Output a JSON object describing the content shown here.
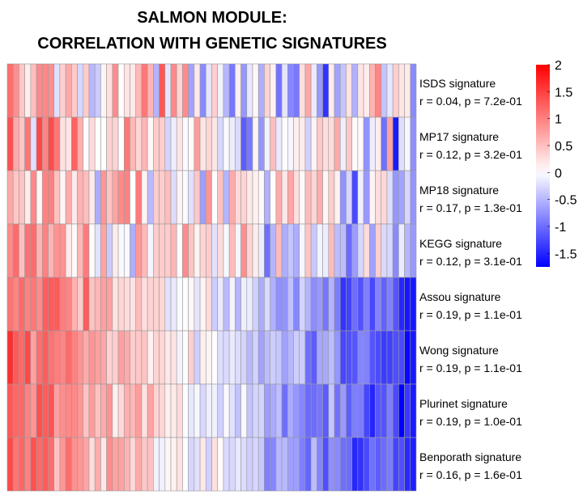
{
  "chart_data": {
    "type": "heatmap",
    "title": [
      "SALMON MODULE:",
      "CORRELATION WITH GENETIC SIGNATURES"
    ],
    "n_columns": 70,
    "rows": [
      {
        "name": "ISDS signature",
        "stat": "r = 0.04, p = 7.2e-01"
      },
      {
        "name": "MP17 signature",
        "stat": "r = 0.12, p = 3.2e-01"
      },
      {
        "name": "MP18 signature",
        "stat": "r = 0.17, p = 1.3e-01"
      },
      {
        "name": "KEGG signature",
        "stat": "r = 0.12, p = 3.1e-01"
      },
      {
        "name": "Assou signature",
        "stat": "r = 0.19, p = 1.1e-01"
      },
      {
        "name": "Wong signature",
        "stat": "r = 0.19, p = 1.1e-01"
      },
      {
        "name": "Plurinet signature",
        "stat": "r = 0.19, p = 1.0e-01"
      },
      {
        "name": "Benporath signature",
        "stat": "r = 0.16, p = 1.6e-01"
      }
    ],
    "color_scale": {
      "min": -1.75,
      "max": 2.0,
      "low_color": "#0000ff",
      "mid_color": "#ffffff",
      "high_color": "#ff0000",
      "ticks": [
        2,
        1.5,
        1,
        0.5,
        0,
        -0.5,
        -1,
        -1.5
      ],
      "tick_labels": [
        "2",
        "1.5",
        "1",
        "0.5",
        "0",
        "-0.5",
        "-1",
        "-1.5"
      ]
    },
    "grid_color": "#999999"
  }
}
